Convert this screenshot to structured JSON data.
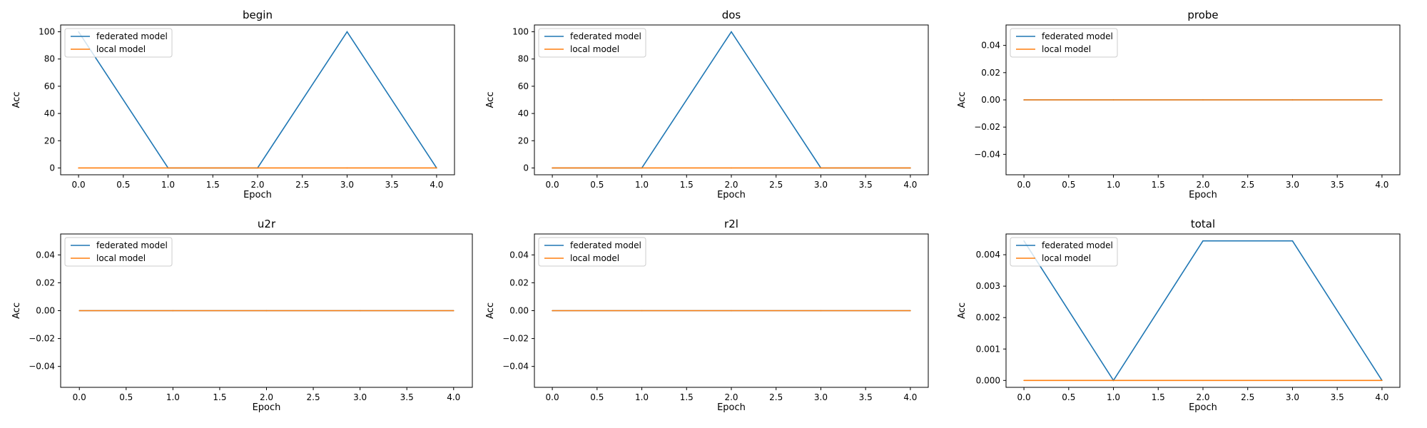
{
  "chart_data": [
    {
      "type": "line",
      "title": "begin",
      "xlabel": "Epoch",
      "ylabel": "Acc",
      "x": [
        0,
        1,
        2,
        3,
        4
      ],
      "xlim": [
        -0.2,
        4.2
      ],
      "ylim": [
        -5,
        105
      ],
      "xticks": [
        "0.0",
        "0.5",
        "1.0",
        "1.5",
        "2.0",
        "2.5",
        "3.0",
        "3.5",
        "4.0"
      ],
      "yticks": [
        "0",
        "20",
        "40",
        "60",
        "80",
        "100"
      ],
      "grid": false,
      "legend_position": "upper-left",
      "series": [
        {
          "name": "federated model",
          "color": "#1f77b4",
          "values": [
            100,
            0,
            0,
            100,
            0
          ]
        },
        {
          "name": "local model",
          "color": "#ff7f0e",
          "values": [
            0,
            0,
            0,
            0,
            0
          ]
        }
      ]
    },
    {
      "type": "line",
      "title": "dos",
      "xlabel": "Epoch",
      "ylabel": "Acc",
      "x": [
        0,
        1,
        2,
        3,
        4
      ],
      "xlim": [
        -0.2,
        4.2
      ],
      "ylim": [
        -5,
        105
      ],
      "xticks": [
        "0.0",
        "0.5",
        "1.0",
        "1.5",
        "2.0",
        "2.5",
        "3.0",
        "3.5",
        "4.0"
      ],
      "yticks": [
        "0",
        "20",
        "40",
        "60",
        "80",
        "100"
      ],
      "grid": false,
      "legend_position": "upper-left",
      "series": [
        {
          "name": "federated model",
          "color": "#1f77b4",
          "values": [
            0,
            0,
            100,
            0,
            0
          ]
        },
        {
          "name": "local model",
          "color": "#ff7f0e",
          "values": [
            0,
            0,
            0,
            0,
            0
          ]
        }
      ]
    },
    {
      "type": "line",
      "title": "probe",
      "xlabel": "Epoch",
      "ylabel": "Acc",
      "x": [
        0,
        1,
        2,
        3,
        4
      ],
      "xlim": [
        -0.2,
        4.2
      ],
      "ylim": [
        -0.055,
        0.055
      ],
      "xticks": [
        "0.0",
        "0.5",
        "1.0",
        "1.5",
        "2.0",
        "2.5",
        "3.0",
        "3.5",
        "4.0"
      ],
      "yticks": [
        "−0.04",
        "−0.02",
        "0.00",
        "0.02",
        "0.04"
      ],
      "grid": false,
      "legend_position": "upper-left",
      "series": [
        {
          "name": "federated model",
          "color": "#1f77b4",
          "values": [
            0,
            0,
            0,
            0,
            0
          ]
        },
        {
          "name": "local model",
          "color": "#ff7f0e",
          "values": [
            0,
            0,
            0,
            0,
            0
          ]
        }
      ]
    },
    {
      "type": "line",
      "title": "u2r",
      "xlabel": "Epoch",
      "ylabel": "Acc",
      "x": [
        0,
        1,
        2,
        3,
        4
      ],
      "xlim": [
        -0.2,
        4.2
      ],
      "ylim": [
        -0.055,
        0.055
      ],
      "xticks": [
        "0.0",
        "0.5",
        "1.0",
        "1.5",
        "2.0",
        "2.5",
        "3.0",
        "3.5",
        "4.0"
      ],
      "yticks": [
        "−0.04",
        "−0.02",
        "0.00",
        "0.02",
        "0.04"
      ],
      "grid": false,
      "legend_position": "upper-left",
      "series": [
        {
          "name": "federated model",
          "color": "#1f77b4",
          "values": [
            0,
            0,
            0,
            0,
            0
          ]
        },
        {
          "name": "local model",
          "color": "#ff7f0e",
          "values": [
            0,
            0,
            0,
            0,
            0
          ]
        }
      ]
    },
    {
      "type": "line",
      "title": "r2l",
      "xlabel": "Epoch",
      "ylabel": "Acc",
      "x": [
        0,
        1,
        2,
        3,
        4
      ],
      "xlim": [
        -0.2,
        4.2
      ],
      "ylim": [
        -0.055,
        0.055
      ],
      "xticks": [
        "0.0",
        "0.5",
        "1.0",
        "1.5",
        "2.0",
        "2.5",
        "3.0",
        "3.5",
        "4.0"
      ],
      "yticks": [
        "−0.04",
        "−0.02",
        "0.00",
        "0.02",
        "0.04"
      ],
      "grid": false,
      "legend_position": "upper-left",
      "series": [
        {
          "name": "federated model",
          "color": "#1f77b4",
          "values": [
            0,
            0,
            0,
            0,
            0
          ]
        },
        {
          "name": "local model",
          "color": "#ff7f0e",
          "values": [
            0,
            0,
            0,
            0,
            0
          ]
        }
      ]
    },
    {
      "type": "line",
      "title": "total",
      "xlabel": "Epoch",
      "ylabel": "Acc",
      "x": [
        0,
        1,
        2,
        3,
        4
      ],
      "xlim": [
        -0.2,
        4.2
      ],
      "ylim": [
        -0.00022,
        0.00466
      ],
      "xticks": [
        "0.0",
        "0.5",
        "1.0",
        "1.5",
        "2.0",
        "2.5",
        "3.0",
        "3.5",
        "4.0"
      ],
      "yticks": [
        "0.000",
        "0.001",
        "0.002",
        "0.003",
        "0.004"
      ],
      "grid": false,
      "legend_position": "upper-left",
      "series": [
        {
          "name": "federated model",
          "color": "#1f77b4",
          "values": [
            0.00444,
            0,
            0.00444,
            0.00444,
            0
          ]
        },
        {
          "name": "local model",
          "color": "#ff7f0e",
          "values": [
            0,
            0,
            0,
            0,
            0
          ]
        }
      ]
    }
  ]
}
